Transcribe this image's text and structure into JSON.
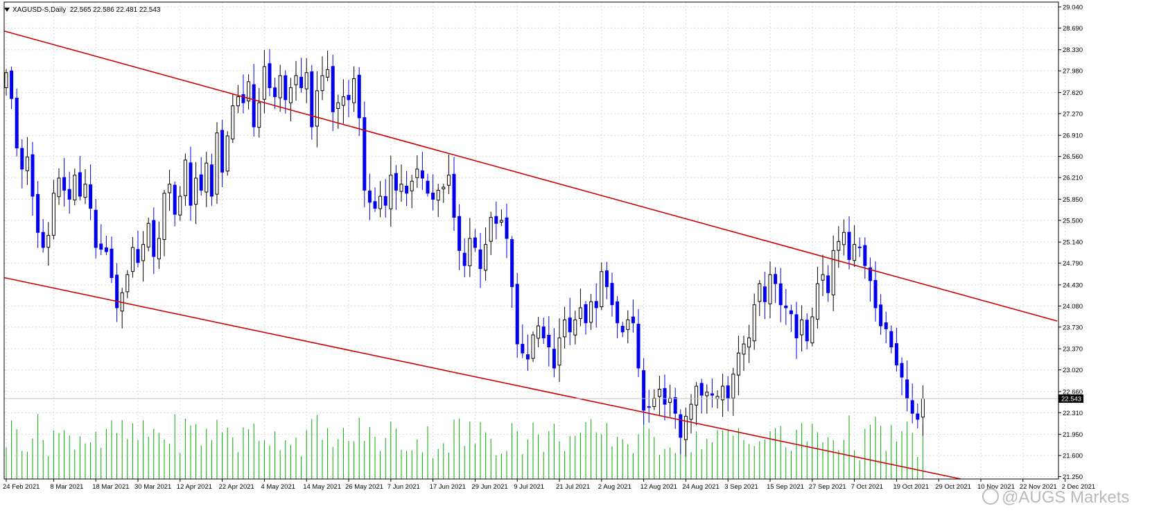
{
  "header": {
    "symbol": "XAGUSD-S",
    "timeframe": "Daily",
    "ohlc": "22.565 22.586 22.481 22.543"
  },
  "watermark": "@AUGS Markets",
  "chart_data": {
    "type": "candlestick",
    "symbol": "XAGUSD-S",
    "timeframe": "Daily",
    "current_price": 22.543,
    "y_axis": {
      "ticks": [
        21.25,
        21.6,
        21.95,
        22.31,
        22.66,
        23.02,
        23.37,
        23.73,
        24.08,
        24.43,
        24.79,
        25.14,
        25.5,
        25.85,
        26.21,
        26.56,
        26.91,
        27.27,
        27.62,
        27.98,
        28.33,
        28.69,
        29.04
      ],
      "tick_labels": [
        "21.250",
        "21.600",
        "21.950",
        "22.310",
        "22.660",
        "23.020",
        "23.370",
        "23.730",
        "24.080",
        "24.430",
        "24.790",
        "25.140",
        "25.500",
        "25.850",
        "26.210",
        "26.560",
        "26.910",
        "27.270",
        "27.620",
        "27.980",
        "28.330",
        "28.690",
        "29.040"
      ],
      "range": [
        21.21,
        29.12
      ]
    },
    "x_axis": {
      "labels": [
        {
          "text": "24 Feb 2021",
          "bar": 0
        },
        {
          "text": "8 Mar 2021",
          "bar": 9
        },
        {
          "text": "18 Mar 2021",
          "bar": 17
        },
        {
          "text": "30 Mar 2021",
          "bar": 25
        },
        {
          "text": "12 Apr 2021",
          "bar": 33
        },
        {
          "text": "22 Apr 2021",
          "bar": 41
        },
        {
          "text": "4 May 2021",
          "bar": 49
        },
        {
          "text": "14 May 2021",
          "bar": 57
        },
        {
          "text": "26 May 2021",
          "bar": 65
        },
        {
          "text": "7 Jun 2021",
          "bar": 73
        },
        {
          "text": "17 Jun 2021",
          "bar": 81
        },
        {
          "text": "29 Jun 2021",
          "bar": 89
        },
        {
          "text": "9 Jul 2021",
          "bar": 97
        },
        {
          "text": "21 Jul 2021",
          "bar": 105
        },
        {
          "text": "2 Aug 2021",
          "bar": 113
        },
        {
          "text": "12 Aug 2021",
          "bar": 121
        },
        {
          "text": "24 Aug 2021",
          "bar": 129
        },
        {
          "text": "3 Sep 2021",
          "bar": 137
        },
        {
          "text": "15 Sep 2021",
          "bar": 145
        },
        {
          "text": "27 Sep 2021",
          "bar": 153
        },
        {
          "text": "7 Oct 2021",
          "bar": 161
        },
        {
          "text": "19 Oct 2021",
          "bar": 169
        },
        {
          "text": "29 Oct 2021",
          "bar": 177
        },
        {
          "text": "10 Nov 2021",
          "bar": 185
        },
        {
          "text": "22 Nov 2021",
          "bar": 193
        },
        {
          "text": "2 Dec 2021",
          "bar": 201
        }
      ]
    },
    "close_path": [
      27.95,
      27.52,
      26.7,
      26.35,
      26.55,
      25.9,
      25.3,
      25.05,
      25.25,
      25.95,
      26.2,
      26.0,
      25.85,
      26.25,
      25.9,
      26.1,
      25.7,
      25.05,
      25.02,
      24.98,
      24.55,
      24.05,
      24.3,
      24.6,
      25.05,
      24.8,
      25.1,
      25.45,
      24.9,
      25.2,
      25.95,
      26.1,
      25.6,
      25.9,
      26.5,
      25.75,
      26.2,
      26.0,
      26.45,
      25.9,
      26.95,
      26.3,
      26.9,
      27.4,
      27.55,
      27.45,
      27.8,
      27.05,
      27.45,
      28.05,
      27.7,
      27.55,
      27.9,
      27.5,
      27.7,
      27.9,
      27.7,
      27.95,
      27.05,
      27.65,
      27.9,
      28.0,
      27.3,
      27.45,
      27.55,
      27.5,
      27.85,
      27.2,
      26.0,
      25.8,
      25.7,
      25.9,
      25.75,
      26.25,
      26.0,
      26.1,
      25.95,
      26.15,
      26.35,
      26.2,
      25.95,
      25.85,
      26.0,
      26.05,
      26.25,
      25.55,
      25.0,
      24.75,
      25.2,
      25.05,
      24.7,
      25.1,
      25.55,
      25.45,
      25.5,
      25.2,
      24.4,
      23.45,
      23.3,
      23.2,
      23.6,
      23.75,
      23.55,
      23.4,
      23.05,
      23.55,
      23.85,
      23.65,
      23.85,
      24.05,
      23.8,
      24.15,
      24.05,
      24.65,
      24.4,
      24.1,
      23.8,
      23.65,
      23.85,
      23.8,
      23.05,
      22.35,
      22.4,
      22.55,
      22.7,
      22.45,
      22.55,
      22.3,
      21.9,
      22.25,
      22.45,
      22.75,
      22.6,
      22.65,
      22.6,
      22.58,
      22.75,
      22.55,
      22.95,
      23.3,
      23.45,
      23.55,
      24.1,
      24.45,
      24.15,
      24.6,
      24.45,
      24.1,
      24.05,
      23.95,
      23.55,
      23.85,
      23.5,
      23.9,
      24.45,
      24.6,
      24.3,
      25.0,
      25.15,
      25.3,
      24.85,
      25.1,
      25.05,
      24.75,
      24.5,
      24.05,
      23.75,
      23.7,
      23.4,
      23.1,
      22.9,
      22.55,
      22.3,
      22.2,
      22.543
    ],
    "trendlines": [
      {
        "type": "channel-upper",
        "color": "#cc0000"
      },
      {
        "type": "channel-lower",
        "color": "#cc0000"
      }
    ],
    "colors": {
      "bull_candle": "#000000",
      "bear_candle": "#0000ee",
      "volume": "#00aa00",
      "grid": "#d8d8d8",
      "price_label_bg": "#000000"
    },
    "volume_pane": "bottom"
  }
}
